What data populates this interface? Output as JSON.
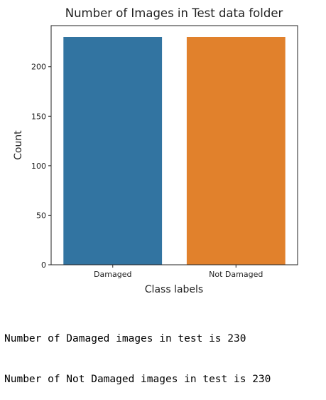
{
  "chart_data": {
    "type": "bar",
    "title": "Number of Images in Test data folder",
    "xlabel": "Class labels",
    "ylabel": "Count",
    "categories": [
      "Damaged",
      "Not Damaged"
    ],
    "values": [
      230,
      230
    ],
    "ylim": [
      0,
      241.5
    ],
    "yticks": [
      0,
      50,
      100,
      150,
      200
    ],
    "colors": [
      "#3274a1",
      "#e1812c"
    ],
    "grid": false
  },
  "output": {
    "lines": [
      "Number of Damaged images in test is 230",
      "Number of Not Damaged images in test is 230"
    ]
  }
}
